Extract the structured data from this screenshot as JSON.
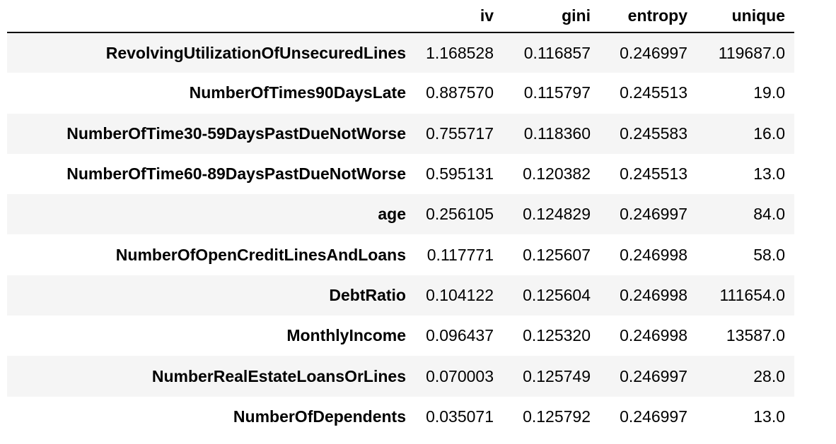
{
  "table": {
    "columns": [
      "iv",
      "gini",
      "entropy",
      "unique"
    ],
    "rows": [
      {
        "index": "RevolvingUtilizationOfUnsecuredLines",
        "values": [
          "1.168528",
          "0.116857",
          "0.246997",
          "119687.0"
        ]
      },
      {
        "index": "NumberOfTimes90DaysLate",
        "values": [
          "0.887570",
          "0.115797",
          "0.245513",
          "19.0"
        ]
      },
      {
        "index": "NumberOfTime30-59DaysPastDueNotWorse",
        "values": [
          "0.755717",
          "0.118360",
          "0.245583",
          "16.0"
        ]
      },
      {
        "index": "NumberOfTime60-89DaysPastDueNotWorse",
        "values": [
          "0.595131",
          "0.120382",
          "0.245513",
          "13.0"
        ]
      },
      {
        "index": "age",
        "values": [
          "0.256105",
          "0.124829",
          "0.246997",
          "84.0"
        ]
      },
      {
        "index": "NumberOfOpenCreditLinesAndLoans",
        "values": [
          "0.117771",
          "0.125607",
          "0.246998",
          "58.0"
        ]
      },
      {
        "index": "DebtRatio",
        "values": [
          "0.104122",
          "0.125604",
          "0.246998",
          "111654.0"
        ]
      },
      {
        "index": "MonthlyIncome",
        "values": [
          "0.096437",
          "0.125320",
          "0.246998",
          "13587.0"
        ]
      },
      {
        "index": "NumberRealEstateLoansOrLines",
        "values": [
          "0.070003",
          "0.125749",
          "0.246997",
          "28.0"
        ]
      },
      {
        "index": "NumberOfDependents",
        "values": [
          "0.035071",
          "0.125792",
          "0.246997",
          "13.0"
        ]
      }
    ]
  }
}
